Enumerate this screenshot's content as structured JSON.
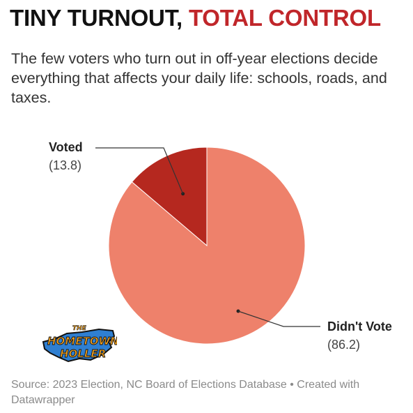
{
  "header": {
    "title_part1": "TINY TURNOUT, ",
    "title_part2": "TOTAL CONTROL",
    "subtitle": "The few voters who turn out in off-year elections decide everything that affects your daily life: schools, roads, and taxes."
  },
  "footer": {
    "source": "Source: 2023 Election, NC Board of Elections Database • Created with Datawrapper"
  },
  "logo": {
    "line1": "THE",
    "line2": "HOMETOWN",
    "line3": "HOLLER"
  },
  "colors": {
    "accent_red": "#c0262a",
    "voted_slice": "#b5281f",
    "didnt_vote_slice": "#ee816b",
    "logo_fill": "#2f7fd1",
    "logo_text": "#f0a020"
  },
  "chart_data": {
    "type": "pie",
    "slices": [
      {
        "label": "Voted",
        "value": 13.8,
        "display": "(13.8)",
        "color": "#b5281f"
      },
      {
        "label": "Didn't Vote",
        "value": 86.2,
        "display": "(86.2)",
        "color": "#ee816b"
      }
    ],
    "start_angle": "12 o'clock",
    "direction": "counter-clockwise for Voted",
    "legend": "none (direct labels)"
  }
}
